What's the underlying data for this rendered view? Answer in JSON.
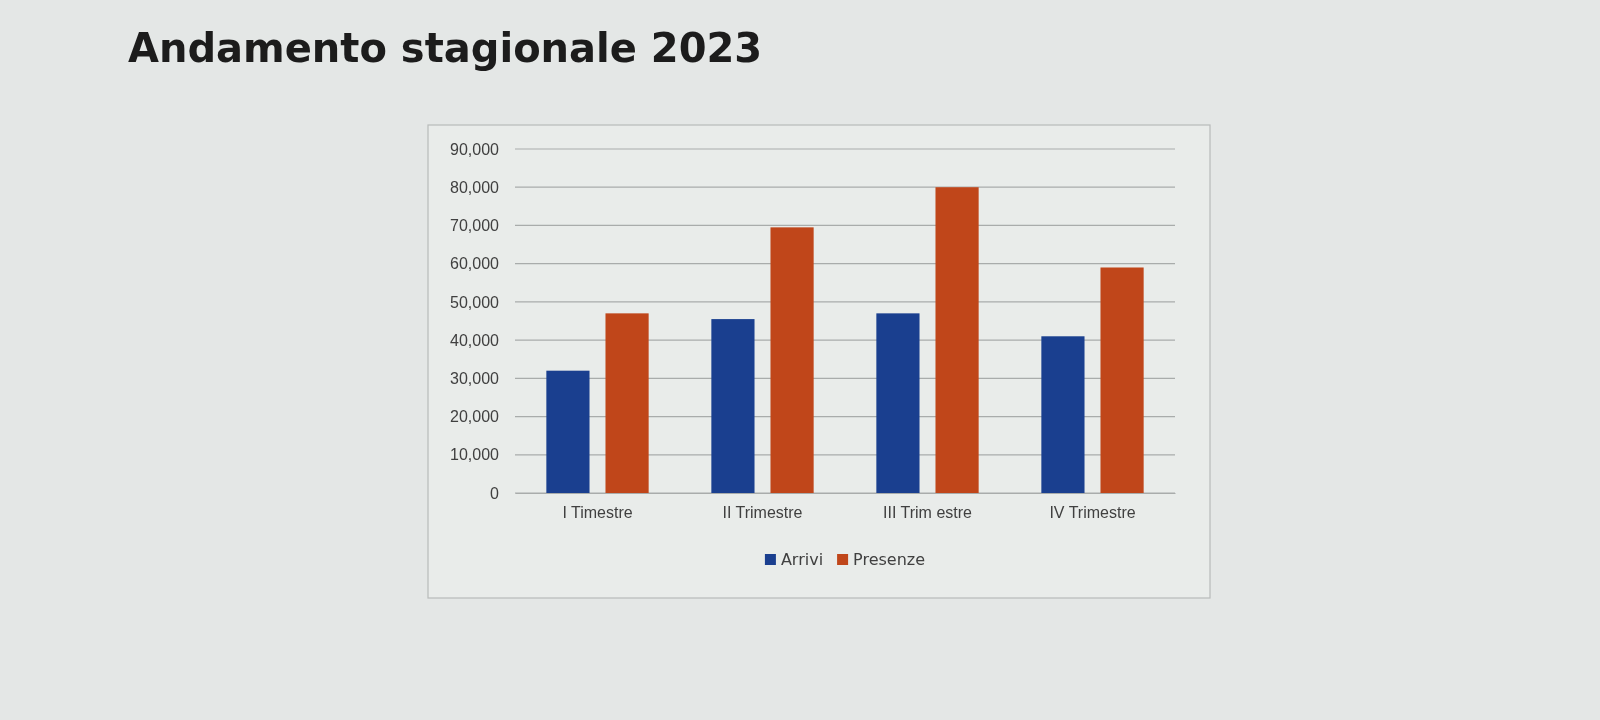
{
  "chart_data": {
    "type": "bar",
    "title": "Andamento stagionale 2023",
    "categories": [
      "I Timestre",
      "II Trimestre",
      "III Trim estre",
      "IV Trimestre"
    ],
    "series": [
      {
        "name": "Arrivi",
        "color": "#1a3f8f",
        "values": [
          32000,
          45500,
          47000,
          41000
        ]
      },
      {
        "name": "Presenze",
        "color": "#c0461a",
        "values": [
          47000,
          69500,
          80000,
          59000
        ]
      }
    ],
    "ylim": [
      0,
      90000
    ],
    "yticks": [
      0,
      {
        "value": 10000,
        "label": "10,000"
      },
      {
        "value": 20000,
        "label": "20,000"
      },
      {
        "value": 30000,
        "label": "30,000"
      },
      {
        "value": 40000,
        "label": "40,000"
      },
      {
        "value": 50000,
        "label": "50,000"
      },
      {
        "value": 60000,
        "label": "60,000"
      },
      {
        "value": 70000,
        "label": "70,000"
      },
      {
        "value": 80000,
        "label": "80,000"
      },
      {
        "value": 90000,
        "label": "90,000"
      }
    ],
    "grid": "y",
    "legend": "bottom"
  }
}
